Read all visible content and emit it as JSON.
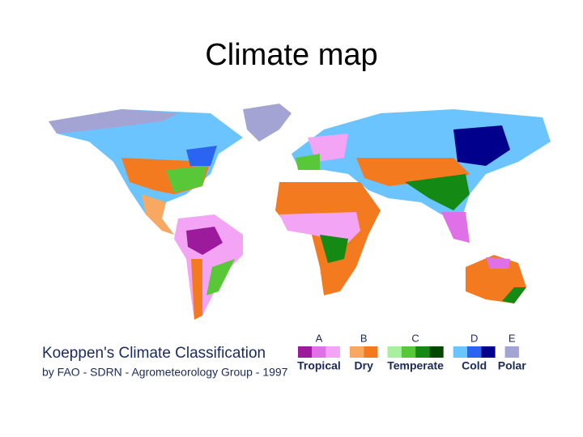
{
  "title": "Climate map",
  "legend": {
    "heading": "Koeppen's Climate Classification",
    "subheading": "by FAO - SDRN - Agrometeorology Group - 1997",
    "classes": [
      {
        "letter": "A",
        "label": "Tropical",
        "colors": [
          "#9c1a9c",
          "#e070e8",
          "#f4a4f4"
        ]
      },
      {
        "letter": "B",
        "label": "Dry",
        "colors": [
          "#f8a860",
          "#f47a20"
        ]
      },
      {
        "letter": "C",
        "label": "Temperate",
        "colors": [
          "#a8f0a0",
          "#58c838",
          "#148a14",
          "#004800"
        ]
      },
      {
        "letter": "D",
        "label": "Cold",
        "colors": [
          "#6cc4ff",
          "#2a64f0",
          "#00008c"
        ]
      },
      {
        "letter": "E",
        "label": "Polar",
        "colors": [
          "#a4a4d4"
        ]
      }
    ]
  }
}
